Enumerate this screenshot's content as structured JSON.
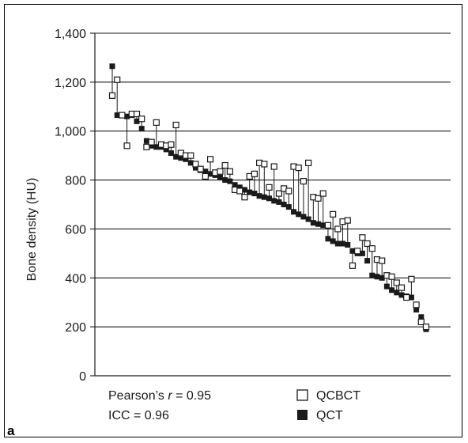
{
  "chart_data": {
    "type": "scatter",
    "panel_label": "a",
    "ylabel": "Bone density (HU)",
    "xlabel": "",
    "ylim": [
      0,
      1400
    ],
    "yticks": [
      0,
      200,
      400,
      600,
      800,
      1000,
      1200,
      1400
    ],
    "ytick_labels": [
      "0",
      "200",
      "400",
      "600",
      "800",
      "1,000",
      "1,200",
      "1,400"
    ],
    "grid": "horizontal",
    "annotations": {
      "pearson_prefix": "Pearson’s ",
      "pearson_r": "r",
      "pearson_value": " = 0.95",
      "icc": "ICC = 0.96"
    },
    "legend": {
      "placement": "bottom",
      "entries": [
        {
          "label": "QCBCT",
          "marker": "open-square"
        },
        {
          "label": "QCT",
          "marker": "filled-square"
        }
      ]
    },
    "colors": {
      "marker": "#1a1a1a",
      "grid": "#1a1a1a"
    },
    "series": [
      {
        "name": "QCBCT",
        "values": [
          1145,
          1210,
          1065,
          940,
          1070,
          1070,
          1050,
          935,
          955,
          1035,
          945,
          940,
          945,
          1025,
          910,
          900,
          900,
          865,
          845,
          815,
          885,
          830,
          835,
          860,
          835,
          760,
          755,
          730,
          815,
          825,
          870,
          865,
          770,
          855,
          745,
          765,
          755,
          855,
          850,
          795,
          870,
          730,
          725,
          745,
          615,
          660,
          600,
          630,
          635,
          450,
          510,
          565,
          540,
          520,
          475,
          470,
          410,
          405,
          380,
          360,
          320,
          395,
          290,
          220,
          200
        ]
      },
      {
        "name": "QCT",
        "values": [
          1265,
          1065,
          1065,
          1060,
          1065,
          1040,
          1010,
          960,
          940,
          935,
          935,
          925,
          910,
          895,
          890,
          885,
          870,
          850,
          840,
          835,
          825,
          820,
          810,
          800,
          795,
          780,
          770,
          760,
          750,
          745,
          735,
          730,
          725,
          715,
          710,
          700,
          690,
          670,
          660,
          650,
          640,
          625,
          620,
          615,
          560,
          550,
          540,
          540,
          535,
          510,
          500,
          500,
          470,
          410,
          405,
          400,
          365,
          350,
          340,
          330,
          325,
          320,
          270,
          240,
          190
        ]
      }
    ]
  }
}
